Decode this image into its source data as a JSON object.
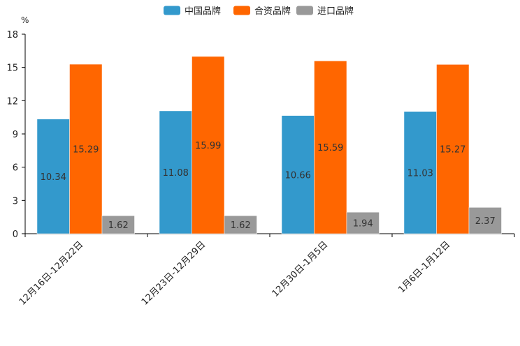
{
  "chart_data": {
    "type": "bar",
    "title": "",
    "xlabel": "",
    "ylabel": "%",
    "ylim": [
      0,
      18
    ],
    "yticks": [
      0,
      3,
      6,
      9,
      12,
      15,
      18
    ],
    "grid": false,
    "legend_position": "top-center",
    "categories": [
      "12月16日-12月22日",
      "12月23日-12月29日",
      "12月30日-1月5日",
      "1月6日-1月12日"
    ],
    "series": [
      {
        "name": "中国品牌",
        "color": "#3399CC",
        "values": [
          10.34,
          11.08,
          10.66,
          11.03
        ]
      },
      {
        "name": "合资品牌",
        "color": "#FF6600",
        "values": [
          15.29,
          15.99,
          15.59,
          15.27
        ]
      },
      {
        "name": "进口品牌",
        "color": "#999999",
        "values": [
          1.62,
          1.62,
          1.94,
          2.37
        ]
      }
    ]
  }
}
